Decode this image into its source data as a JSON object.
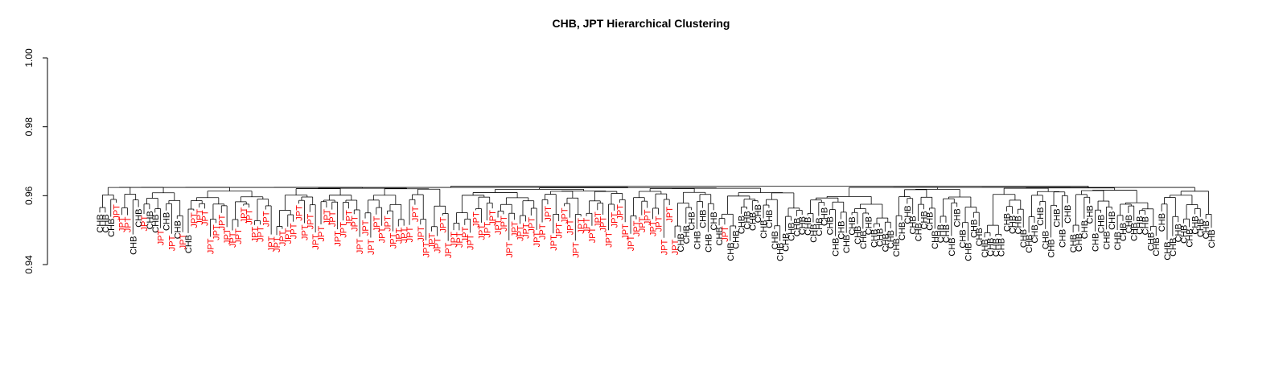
{
  "chart_data": {
    "type": "dendrogram",
    "title": "CHB, JPT Hierarchical Clustering",
    "xlabel": "",
    "ylabel": "",
    "ylim": [
      0.94,
      1.0
    ],
    "yticks": [
      "0.94",
      "0.96",
      "0.98",
      "1.00"
    ],
    "ytick_values": [
      0.94,
      0.96,
      0.98,
      1.0
    ],
    "grid": false,
    "legend": "none",
    "colors": {
      "CHB": "#000000",
      "JPT": "#ff0000",
      "branch": "#000000"
    },
    "root_height": 0.9652,
    "main_split_heights": [
      0.9642,
      0.9628
    ],
    "leaves": [
      "CHB",
      "CHB",
      "CHB",
      "JPT",
      "JPT",
      "JPT",
      "CHB",
      "CHB",
      "JPT",
      "CHB",
      "CHB",
      "JPT",
      "CHB",
      "JPT",
      "CHB",
      "JPT",
      "CHB",
      "JPT",
      "JPT",
      "JPT",
      "JPT",
      "JPT",
      "JPT",
      "JPT",
      "JPT",
      "JPT",
      "JPT",
      "JPT",
      "JPT",
      "JPT",
      "JPT",
      "JPT",
      "JPT",
      "JPT",
      "JPT",
      "JPT",
      "JPT",
      "JPT",
      "JPT",
      "JPT",
      "JPT",
      "JPT",
      "JPT",
      "JPT",
      "JPT",
      "JPT",
      "JPT",
      "JPT",
      "JPT",
      "JPT",
      "JPT",
      "JPT",
      "JPT",
      "JPT",
      "JPT",
      "JPT",
      "JPT",
      "JPT",
      "JPT",
      "JPT",
      "JPT",
      "JPT",
      "JPT",
      "JPT",
      "JPT",
      "JPT",
      "JPT",
      "JPT",
      "JPT",
      "JPT",
      "JPT",
      "JPT",
      "JPT",
      "JPT",
      "JPT",
      "JPT",
      "JPT",
      "JPT",
      "JPT",
      "JPT",
      "JPT",
      "JPT",
      "JPT",
      "JPT",
      "JPT",
      "JPT",
      "JPT",
      "JPT",
      "JPT",
      "JPT",
      "JPT",
      "JPT",
      "JPT",
      "JPT",
      "JPT",
      "JPT",
      "JPT",
      "JPT",
      "JPT",
      "JPT",
      "JPT",
      "JPT",
      "JPT",
      "JPT",
      "JPT",
      "CHB",
      "CHB",
      "CHB",
      "CHB",
      "CHB",
      "CHB",
      "CHB",
      "CHB",
      "JPT",
      "CHB",
      "CHB",
      "CHB",
      "CHB",
      "CHB",
      "CHB",
      "CHB",
      "CHB",
      "CHB",
      "CHB",
      "CHB",
      "CHB",
      "CHB",
      "CHB",
      "CHB",
      "CHB",
      "CHB",
      "CHB",
      "CHB",
      "CHB",
      "CHB",
      "CHB",
      "CHB",
      "CHB",
      "CHB",
      "CHB",
      "CHB",
      "CHB",
      "CHB",
      "CHB",
      "CHB",
      "CHB",
      "CHB",
      "CHB",
      "CHB",
      "CHB",
      "CHB",
      "CHB",
      "CHB",
      "CHB",
      "CHB",
      "CHB",
      "CHB",
      "CHB",
      "CHB",
      "CHB",
      "CHB",
      "CHB",
      "CHB",
      "CHB",
      "CHB",
      "CHB",
      "CHB",
      "CHB",
      "CHB",
      "CHB",
      "CHB",
      "CHB",
      "CHB",
      "CHB",
      "CHB",
      "CHB",
      "CHB",
      "CHB",
      "CHB",
      "CHB",
      "CHB",
      "CHB",
      "CHB",
      "CHB",
      "CHB",
      "CHB",
      "CHB",
      "CHB",
      "CHB",
      "CHB",
      "CHB",
      "CHB",
      "CHB",
      "CHB",
      "CHB",
      "CHB",
      "CHB",
      "CHB",
      "CHB",
      "CHB",
      "CHB",
      "CHB"
    ]
  }
}
